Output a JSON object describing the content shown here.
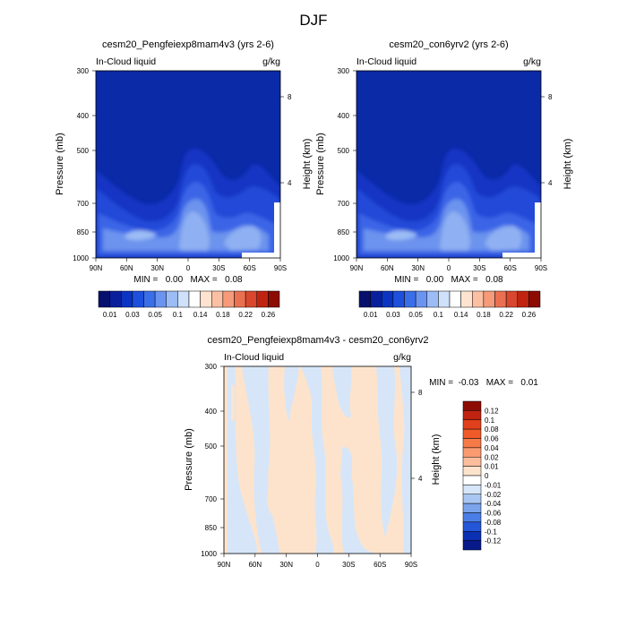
{
  "page_title": "DJF",
  "colors": {
    "background": "#ffffff",
    "field_base_top": "#0a2aa8",
    "diff_positive": "#fde3cc",
    "diff_negative": "#d6e6f8"
  },
  "chart_data": [
    {
      "type": "heatmap",
      "title": "cesm20_Pengfeiexp8mam4v3 (yrs 2-6)",
      "left_label": "In-Cloud liquid",
      "right_label": "g/kg",
      "ylabel": "Pressure (mb)",
      "ylabel_right": "Height (km)",
      "x_ticks": [
        "90N",
        "60N",
        "30N",
        "0",
        "30S",
        "60S",
        "90S"
      ],
      "y_ticks": [
        "300",
        "400",
        "500",
        "700",
        "850",
        "1000"
      ],
      "y_right_ticks": [
        "8",
        "4"
      ],
      "stats_text": "MIN =   0.00   MAX =   0.08",
      "colorbar_labels": [
        "0.01",
        "0.03",
        "0.05",
        "0.1",
        "0.14",
        "0.18",
        "0.22",
        "0.26"
      ],
      "colorbar_colors": [
        "#08106e",
        "#0a1f9c",
        "#0c34c2",
        "#1e50dc",
        "#3b6fe8",
        "#6a94ef",
        "#9bbcf4",
        "#cfe0fa",
        "#ffffff",
        "#fde3d0",
        "#fbc0a3",
        "#f59b7a",
        "#ea7052",
        "#d9472f",
        "#c02410",
        "#8c0c04"
      ]
    },
    {
      "type": "heatmap",
      "title": "cesm20_con6yrv2 (yrs 2-6)",
      "left_label": "In-Cloud liquid",
      "right_label": "g/kg",
      "ylabel": "Pressure (mb)",
      "ylabel_right": "Height (km)",
      "x_ticks": [
        "90N",
        "60N",
        "30N",
        "0",
        "30S",
        "60S",
        "90S"
      ],
      "y_ticks": [
        "300",
        "400",
        "500",
        "700",
        "850",
        "1000"
      ],
      "y_right_ticks": [
        "8",
        "4"
      ],
      "stats_text": "MIN =   0.00   MAX =   0.08",
      "colorbar_labels": [
        "0.01",
        "0.03",
        "0.05",
        "0.1",
        "0.14",
        "0.18",
        "0.22",
        "0.26"
      ],
      "colorbar_colors": [
        "#08106e",
        "#0a1f9c",
        "#0c34c2",
        "#1e50dc",
        "#3b6fe8",
        "#6a94ef",
        "#9bbcf4",
        "#cfe0fa",
        "#ffffff",
        "#fde3d0",
        "#fbc0a3",
        "#f59b7a",
        "#ea7052",
        "#d9472f",
        "#c02410",
        "#8c0c04"
      ]
    },
    {
      "type": "heatmap",
      "title": "cesm20_Pengfeiexp8mam4v3 - cesm20_con6yrv2",
      "left_label": "In-Cloud liquid",
      "right_label": "g/kg",
      "ylabel": "Pressure (mb)",
      "ylabel_right": "Height (km)",
      "x_ticks": [
        "90N",
        "60N",
        "30N",
        "0",
        "30S",
        "60S",
        "90S"
      ],
      "y_ticks": [
        "300",
        "400",
        "500",
        "700",
        "850",
        "1000"
      ],
      "y_right_ticks": [
        "8",
        "4"
      ],
      "stats_text": "MIN =  -0.03   MAX =   0.01",
      "colorbar_labels": [
        "0.12",
        "0.1",
        "0.08",
        "0.06",
        "0.04",
        "0.02",
        "0.01",
        "0",
        "-0.01",
        "-0.02",
        "-0.04",
        "-0.06",
        "-0.08",
        "-0.1",
        "-0.12"
      ],
      "colorbar_colors": [
        "#8c0c04",
        "#c02410",
        "#e0401c",
        "#f05a28",
        "#f57a48",
        "#f99a70",
        "#fbbd9c",
        "#fde3cc",
        "#ffffff",
        "#d6e6f8",
        "#a9c6f2",
        "#7ba4ec",
        "#4a7ee6",
        "#2456d8",
        "#0c30b4",
        "#081a8a"
      ]
    }
  ]
}
